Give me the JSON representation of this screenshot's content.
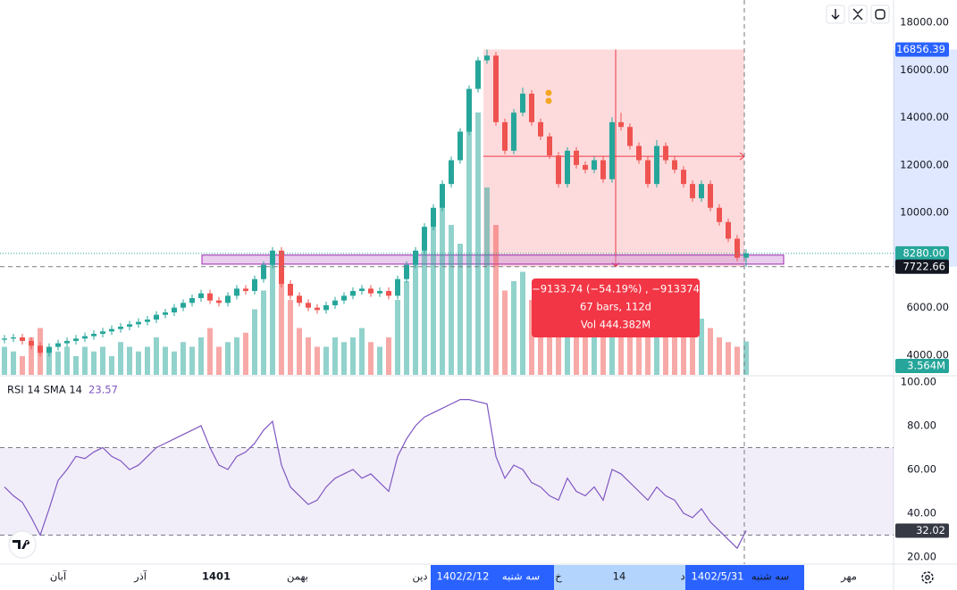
{
  "chart_data": {
    "type": "candlestick",
    "open": [
      4650,
      4700,
      4750,
      4600,
      4400,
      4100,
      4350,
      4500,
      4600,
      4700,
      4800,
      4900,
      5000,
      5100,
      5200,
      5300,
      5400,
      5500,
      5700,
      5800,
      6000,
      6200,
      6400,
      6600,
      6300,
      6200,
      6500,
      6800,
      6700,
      7200,
      7800,
      8400,
      7000,
      6500,
      6200,
      6000,
      5900,
      6100,
      6300,
      6500,
      6700,
      6800,
      6600,
      6700,
      6500,
      7200,
      7800,
      8400,
      9400,
      10200,
      11200,
      12200,
      13400,
      15200,
      16400,
      16600,
      13800,
      12600,
      14200,
      15000,
      13800,
      13200,
      12400,
      11200,
      12600,
      12000,
      11800,
      12200,
      11400,
      13800,
      13600,
      12800,
      12200,
      11200,
      12800,
      12200,
      11800,
      11200,
      10600,
      11200,
      10200,
      9600,
      8900,
      8100
    ],
    "high": [
      4850,
      4900,
      4900,
      4750,
      4550,
      4500,
      4650,
      4750,
      4850,
      4950,
      5050,
      5150,
      5250,
      5350,
      5450,
      5550,
      5650,
      5850,
      5950,
      6150,
      6350,
      6550,
      6750,
      6750,
      6450,
      6650,
      6950,
      6950,
      7350,
      7950,
      8550,
      8550,
      7150,
      6650,
      6350,
      6150,
      6250,
      6450,
      6650,
      6850,
      6950,
      6950,
      6850,
      6850,
      7350,
      7950,
      8550,
      9550,
      10350,
      11350,
      12350,
      13550,
      15350,
      16550,
      16856,
      16750,
      13950,
      14350,
      15250,
      15150,
      13950,
      13350,
      12550,
      12750,
      12750,
      12150,
      12350,
      12350,
      14000,
      14200,
      13750,
      12950,
      12350,
      13050,
      12950,
      12350,
      11950,
      11350,
      11350,
      11350,
      10350,
      9750,
      9050,
      8450
    ],
    "low": [
      4500,
      4550,
      4450,
      4250,
      3950,
      3950,
      4200,
      4350,
      4450,
      4550,
      4650,
      4750,
      4850,
      4950,
      5050,
      5150,
      5250,
      5350,
      5550,
      5650,
      5850,
      6050,
      6250,
      6150,
      6050,
      6050,
      6350,
      6550,
      6550,
      7050,
      7650,
      6850,
      6350,
      6050,
      5850,
      5750,
      5750,
      5950,
      6150,
      6350,
      6550,
      6450,
      6450,
      6350,
      6350,
      7050,
      7650,
      8250,
      9250,
      10050,
      11050,
      12050,
      13250,
      15050,
      16250,
      13650,
      12450,
      12450,
      14050,
      13650,
      13050,
      12250,
      11050,
      11050,
      11850,
      11650,
      11650,
      11250,
      11250,
      13450,
      12650,
      12050,
      11050,
      11050,
      12050,
      11650,
      11050,
      10450,
      10450,
      10050,
      9450,
      8750,
      7950,
      7722
    ],
    "close": [
      4700,
      4750,
      4600,
      4400,
      4100,
      4350,
      4500,
      4600,
      4700,
      4800,
      4900,
      5000,
      5100,
      5200,
      5300,
      5400,
      5500,
      5700,
      5800,
      6000,
      6200,
      6400,
      6600,
      6300,
      6200,
      6500,
      6800,
      6700,
      7200,
      7800,
      8400,
      7000,
      6500,
      6200,
      6000,
      5900,
      6100,
      6300,
      6500,
      6700,
      6800,
      6600,
      6700,
      6500,
      7200,
      7800,
      8400,
      9400,
      10200,
      11200,
      12200,
      13400,
      15200,
      16400,
      16600,
      13800,
      12600,
      14200,
      15000,
      13800,
      13200,
      12400,
      11200,
      12600,
      12000,
      11800,
      12200,
      11400,
      13800,
      13600,
      12800,
      12200,
      11200,
      12800,
      12200,
      11800,
      11200,
      10600,
      11200,
      10200,
      9600,
      8900,
      8100,
      8280
    ],
    "volume": [
      3,
      2.5,
      2,
      4,
      5,
      3,
      2.5,
      3,
      2,
      3,
      2.5,
      3,
      2,
      3.5,
      3,
      2.5,
      3,
      4,
      3,
      2.5,
      3.5,
      3,
      4,
      5,
      3,
      3.5,
      4,
      4.5,
      7,
      9,
      12,
      10,
      8,
      5,
      4,
      3,
      3,
      4,
      3.5,
      4,
      5,
      3.5,
      3,
      4,
      8,
      10,
      13,
      15,
      17,
      20,
      16,
      14,
      26,
      28,
      20,
      16,
      9,
      10,
      11,
      8,
      7,
      6,
      8,
      9,
      6,
      5,
      7,
      6,
      10,
      9,
      7,
      8,
      6,
      7,
      6,
      5,
      5,
      4,
      6,
      5,
      4,
      3.5,
      3,
      3.564
    ],
    "volume_lim": [
      0,
      40
    ],
    "volume_label": {
      "value": 3.564,
      "label": "3.564M"
    },
    "rsi": [
      52,
      48,
      45,
      38,
      30,
      42,
      55,
      60,
      66,
      65,
      68,
      70,
      66,
      64,
      60,
      62,
      66,
      70,
      72,
      74,
      76,
      78,
      80,
      70,
      62,
      60,
      66,
      68,
      72,
      78,
      82,
      62,
      52,
      48,
      44,
      46,
      52,
      56,
      58,
      60,
      56,
      58,
      54,
      50,
      66,
      74,
      80,
      84,
      86,
      88,
      90,
      92,
      92,
      91,
      90,
      66,
      56,
      62,
      60,
      54,
      52,
      48,
      46,
      56,
      50,
      48,
      52,
      46,
      60,
      58,
      54,
      50,
      46,
      52,
      48,
      46,
      40,
      38,
      42,
      36,
      32,
      28,
      24,
      32.02
    ],
    "rsi_title": "RSI 14 SMA 14",
    "rsi_sma": 23.57,
    "rsi_label": {
      "value": 32.02,
      "label": "32.02"
    },
    "rsi_lim": [
      17.14,
      102.86
    ],
    "rsi_bands": [
      70,
      30
    ],
    "rsi_ticks": [
      {
        "value": 100,
        "label": "100.00"
      },
      {
        "value": 80,
        "label": "80.00"
      },
      {
        "value": 60,
        "label": "60.00"
      },
      {
        "value": 40,
        "label": "40.00"
      },
      {
        "value": 20,
        "label": "20.00"
      }
    ],
    "ylim": [
      3172,
      18938
    ],
    "yticks": [
      {
        "value": 18000,
        "label": "18000.00"
      },
      {
        "value": 16000,
        "label": "16000.00"
      },
      {
        "value": 14000,
        "label": "14000.00"
      },
      {
        "value": 12000,
        "label": "12000.00"
      },
      {
        "value": 10000,
        "label": "10000.00"
      },
      {
        "value": 6000,
        "label": "6000.00"
      },
      {
        "value": 4000,
        "label": "4000.00"
      }
    ],
    "high_label": {
      "value": 16856.39,
      "label": "16856.39"
    },
    "last_label": {
      "value": 8280,
      "label": "8280.00"
    },
    "cross_label": {
      "value": 7722.66,
      "label": "7722.66"
    },
    "zone": [
      7830,
      8210
    ],
    "measure": {
      "lines": [
        "−9133.74 (−54.19%) , −913374",
        "67 bars, 112d",
        "Vol 444.382M"
      ]
    },
    "up_color": "#26a69a",
    "down_color": "#ef5350",
    "rsi_color": "#7e57c2",
    "time_labels": [
      "آبان",
      "آذر",
      "1401",
      "بهمن",
      "دین",
      "خ",
      "14",
      "د",
      "مهر"
    ],
    "time_highlights": [
      "1402/2/12",
      "سه شنبه",
      "1402/5/31",
      "سه شنبه"
    ]
  }
}
